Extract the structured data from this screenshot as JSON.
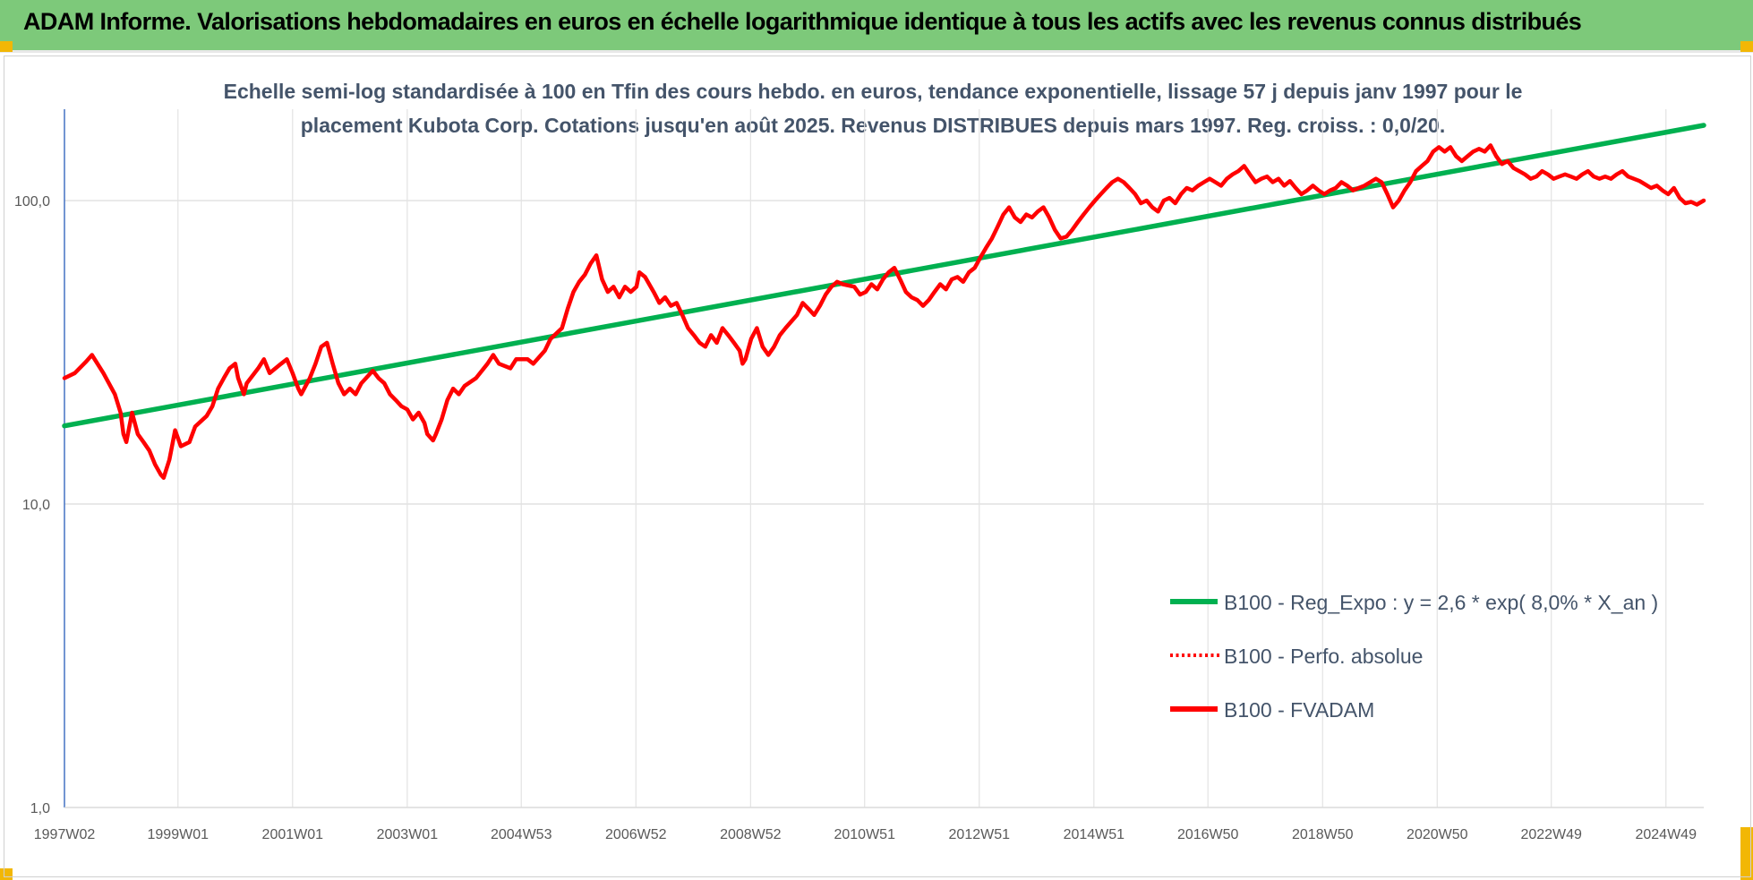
{
  "header": {
    "title": "ADAM Informe. Valorisations hebdomadaires en euros en échelle logarithmique identique à tous les actifs avec les revenus connus distribués",
    "background": "#7dc97a"
  },
  "chart_data": {
    "type": "line",
    "title_lines": [
      "Echelle semi-log standardisée à 100 en Tfin des cours hebdo. en euros, tendance exponentielle, lissage 57 j depuis janv 1997 pour le",
      "placement Kubota Corp. Cotations jusqu'en août 2025. Revenus DISTRIBUES depuis mars 1997. Reg. croiss. : 0,0/20."
    ],
    "y_scale": "log",
    "ylim": [
      1,
      200
    ],
    "y_ticks": [
      {
        "value": 1,
        "label": "1,0"
      },
      {
        "value": 10,
        "label": "10,0"
      },
      {
        "value": 100,
        "label": "100,0"
      }
    ],
    "xlim": [
      1997.02,
      2025.62
    ],
    "x_ticks": [
      {
        "value": 1997.02,
        "label": "1997W02"
      },
      {
        "value": 1999.0,
        "label": "1999W01"
      },
      {
        "value": 2001.0,
        "label": "2001W01"
      },
      {
        "value": 2003.0,
        "label": "2003W01"
      },
      {
        "value": 2004.99,
        "label": "2004W53"
      },
      {
        "value": 2006.99,
        "label": "2006W52"
      },
      {
        "value": 2008.99,
        "label": "2008W52"
      },
      {
        "value": 2010.98,
        "label": "2010W51"
      },
      {
        "value": 2012.98,
        "label": "2012W51"
      },
      {
        "value": 2014.98,
        "label": "2014W51"
      },
      {
        "value": 2016.97,
        "label": "2016W50"
      },
      {
        "value": 2018.97,
        "label": "2018W50"
      },
      {
        "value": 2020.97,
        "label": "2020W50"
      },
      {
        "value": 2022.96,
        "label": "2022W49"
      },
      {
        "value": 2024.96,
        "label": "2024W49"
      }
    ],
    "grid": true,
    "legend_position": "lower-right",
    "series": [
      {
        "name": "B100 - Reg_Expo : y = 2,6 * exp( 8,0% *  X_an )",
        "color": "#00b050",
        "style": "solid",
        "points": [
          [
            1997.02,
            18.1
          ],
          [
            2025.62,
            177.0
          ]
        ]
      },
      {
        "name": "B100 - Perfo. absolue",
        "color": "#ff0000",
        "style": "dotted",
        "points": []
      },
      {
        "name": "B100 - FVADAM",
        "color": "#ff0000",
        "style": "solid",
        "points": [
          [
            1997.02,
            26.0
          ],
          [
            1997.2,
            27.0
          ],
          [
            1997.4,
            29.5
          ],
          [
            1997.5,
            31.0
          ],
          [
            1997.7,
            27.0
          ],
          [
            1997.9,
            23.0
          ],
          [
            1998.0,
            20.0
          ],
          [
            1998.05,
            17.0
          ],
          [
            1998.1,
            16.0
          ],
          [
            1998.2,
            20.0
          ],
          [
            1998.3,
            17.0
          ],
          [
            1998.4,
            16.0
          ],
          [
            1998.5,
            15.0
          ],
          [
            1998.6,
            13.5
          ],
          [
            1998.7,
            12.5
          ],
          [
            1998.75,
            12.2
          ],
          [
            1998.85,
            14.0
          ],
          [
            1998.95,
            17.5
          ],
          [
            1999.05,
            15.5
          ],
          [
            1999.2,
            16.0
          ],
          [
            1999.3,
            18.0
          ],
          [
            1999.5,
            19.5
          ],
          [
            1999.6,
            21.0
          ],
          [
            1999.7,
            24.0
          ],
          [
            1999.8,
            26.0
          ],
          [
            1999.9,
            28.0
          ],
          [
            2000.0,
            29.0
          ],
          [
            2000.05,
            26.0
          ],
          [
            2000.15,
            23.0
          ],
          [
            2000.2,
            25.0
          ],
          [
            2000.4,
            28.0
          ],
          [
            2000.5,
            30.0
          ],
          [
            2000.6,
            27.0
          ],
          [
            2000.8,
            29.0
          ],
          [
            2000.9,
            30.0
          ],
          [
            2001.0,
            27.0
          ],
          [
            2001.1,
            24.0
          ],
          [
            2001.15,
            23.0
          ],
          [
            2001.3,
            26.0
          ],
          [
            2001.4,
            29.0
          ],
          [
            2001.5,
            33.0
          ],
          [
            2001.6,
            34.0
          ],
          [
            2001.7,
            29.0
          ],
          [
            2001.8,
            25.0
          ],
          [
            2001.9,
            23.0
          ],
          [
            2002.0,
            24.0
          ],
          [
            2002.1,
            23.0
          ],
          [
            2002.2,
            25.0
          ],
          [
            2002.4,
            27.5
          ],
          [
            2002.5,
            26.0
          ],
          [
            2002.6,
            25.0
          ],
          [
            2002.7,
            23.0
          ],
          [
            2002.8,
            22.0
          ],
          [
            2002.9,
            21.0
          ],
          [
            2003.0,
            20.5
          ],
          [
            2003.1,
            19.0
          ],
          [
            2003.2,
            20.0
          ],
          [
            2003.3,
            18.5
          ],
          [
            2003.35,
            17.0
          ],
          [
            2003.45,
            16.2
          ],
          [
            2003.5,
            17.0
          ],
          [
            2003.6,
            19.0
          ],
          [
            2003.7,
            22.0
          ],
          [
            2003.8,
            24.0
          ],
          [
            2003.9,
            23.0
          ],
          [
            2004.0,
            24.5
          ],
          [
            2004.2,
            26.0
          ],
          [
            2004.4,
            29.0
          ],
          [
            2004.5,
            31.0
          ],
          [
            2004.6,
            29.0
          ],
          [
            2004.8,
            28.0
          ],
          [
            2004.9,
            30.0
          ],
          [
            2005.1,
            30.0
          ],
          [
            2005.2,
            29.0
          ],
          [
            2005.4,
            32.0
          ],
          [
            2005.5,
            35.0
          ],
          [
            2005.7,
            38.0
          ],
          [
            2005.8,
            44.0
          ],
          [
            2005.9,
            50.0
          ],
          [
            2006.0,
            54.0
          ],
          [
            2006.1,
            57.0
          ],
          [
            2006.2,
            62.0
          ],
          [
            2006.3,
            66.0
          ],
          [
            2006.4,
            55.0
          ],
          [
            2006.5,
            50.0
          ],
          [
            2006.6,
            52.0
          ],
          [
            2006.7,
            48.0
          ],
          [
            2006.8,
            52.0
          ],
          [
            2006.9,
            50.0
          ],
          [
            2007.0,
            52.0
          ],
          [
            2007.05,
            58.0
          ],
          [
            2007.15,
            56.0
          ],
          [
            2007.3,
            50.0
          ],
          [
            2007.4,
            46.0
          ],
          [
            2007.5,
            48.0
          ],
          [
            2007.6,
            45.0
          ],
          [
            2007.7,
            46.0
          ],
          [
            2007.8,
            42.0
          ],
          [
            2007.9,
            38.0
          ],
          [
            2008.0,
            36.0
          ],
          [
            2008.1,
            34.0
          ],
          [
            2008.2,
            33.0
          ],
          [
            2008.3,
            36.0
          ],
          [
            2008.4,
            34.0
          ],
          [
            2008.5,
            38.0
          ],
          [
            2008.6,
            36.0
          ],
          [
            2008.7,
            34.0
          ],
          [
            2008.8,
            32.0
          ],
          [
            2008.85,
            29.0
          ],
          [
            2008.9,
            30.0
          ],
          [
            2009.0,
            35.0
          ],
          [
            2009.1,
            38.0
          ],
          [
            2009.2,
            33.0
          ],
          [
            2009.3,
            31.0
          ],
          [
            2009.4,
            33.0
          ],
          [
            2009.5,
            36.0
          ],
          [
            2009.6,
            38.0
          ],
          [
            2009.8,
            42.0
          ],
          [
            2009.9,
            46.0
          ],
          [
            2010.0,
            44.0
          ],
          [
            2010.1,
            42.0
          ],
          [
            2010.2,
            45.0
          ],
          [
            2010.3,
            49.0
          ],
          [
            2010.4,
            52.0
          ],
          [
            2010.5,
            54.0
          ],
          [
            2010.6,
            53.0
          ],
          [
            2010.8,
            52.0
          ],
          [
            2010.9,
            49.0
          ],
          [
            2011.0,
            50.0
          ],
          [
            2011.1,
            53.0
          ],
          [
            2011.2,
            51.0
          ],
          [
            2011.3,
            55.0
          ],
          [
            2011.4,
            58.0
          ],
          [
            2011.5,
            60.0
          ],
          [
            2011.6,
            55.0
          ],
          [
            2011.7,
            50.0
          ],
          [
            2011.8,
            48.0
          ],
          [
            2011.9,
            47.0
          ],
          [
            2012.0,
            45.0
          ],
          [
            2012.1,
            47.0
          ],
          [
            2012.2,
            50.0
          ],
          [
            2012.3,
            53.0
          ],
          [
            2012.4,
            51.0
          ],
          [
            2012.5,
            55.0
          ],
          [
            2012.6,
            56.0
          ],
          [
            2012.7,
            54.0
          ],
          [
            2012.8,
            58.0
          ],
          [
            2012.9,
            60.0
          ],
          [
            2013.0,
            65.0
          ],
          [
            2013.1,
            70.0
          ],
          [
            2013.2,
            75.0
          ],
          [
            2013.3,
            82.0
          ],
          [
            2013.4,
            90.0
          ],
          [
            2013.5,
            95.0
          ],
          [
            2013.6,
            88.0
          ],
          [
            2013.7,
            85.0
          ],
          [
            2013.8,
            90.0
          ],
          [
            2013.9,
            88.0
          ],
          [
            2014.0,
            92.0
          ],
          [
            2014.1,
            95.0
          ],
          [
            2014.2,
            88.0
          ],
          [
            2014.3,
            80.0
          ],
          [
            2014.4,
            75.0
          ],
          [
            2014.5,
            76.0
          ],
          [
            2014.6,
            80.0
          ],
          [
            2014.7,
            85.0
          ],
          [
            2014.8,
            90.0
          ],
          [
            2014.9,
            95.0
          ],
          [
            2015.0,
            100.0
          ],
          [
            2015.1,
            105.0
          ],
          [
            2015.2,
            110.0
          ],
          [
            2015.3,
            115.0
          ],
          [
            2015.4,
            118.0
          ],
          [
            2015.5,
            115.0
          ],
          [
            2015.6,
            110.0
          ],
          [
            2015.7,
            105.0
          ],
          [
            2015.8,
            98.0
          ],
          [
            2015.9,
            100.0
          ],
          [
            2016.0,
            95.0
          ],
          [
            2016.1,
            92.0
          ],
          [
            2016.2,
            100.0
          ],
          [
            2016.3,
            102.0
          ],
          [
            2016.4,
            98.0
          ],
          [
            2016.5,
            105.0
          ],
          [
            2016.6,
            110.0
          ],
          [
            2016.7,
            108.0
          ],
          [
            2016.8,
            112.0
          ],
          [
            2016.9,
            115.0
          ],
          [
            2017.0,
            118.0
          ],
          [
            2017.1,
            115.0
          ],
          [
            2017.2,
            112.0
          ],
          [
            2017.3,
            118.0
          ],
          [
            2017.4,
            122.0
          ],
          [
            2017.5,
            125.0
          ],
          [
            2017.6,
            130.0
          ],
          [
            2017.7,
            122.0
          ],
          [
            2017.8,
            115.0
          ],
          [
            2017.9,
            118.0
          ],
          [
            2018.0,
            120.0
          ],
          [
            2018.1,
            115.0
          ],
          [
            2018.2,
            118.0
          ],
          [
            2018.3,
            112.0
          ],
          [
            2018.4,
            116.0
          ],
          [
            2018.5,
            110.0
          ],
          [
            2018.6,
            105.0
          ],
          [
            2018.7,
            108.0
          ],
          [
            2018.8,
            112.0
          ],
          [
            2018.9,
            108.0
          ],
          [
            2019.0,
            105.0
          ],
          [
            2019.1,
            108.0
          ],
          [
            2019.2,
            110.0
          ],
          [
            2019.3,
            115.0
          ],
          [
            2019.4,
            112.0
          ],
          [
            2019.5,
            108.0
          ],
          [
            2019.6,
            110.0
          ],
          [
            2019.7,
            112.0
          ],
          [
            2019.8,
            115.0
          ],
          [
            2019.9,
            118.0
          ],
          [
            2020.0,
            115.0
          ],
          [
            2020.1,
            105.0
          ],
          [
            2020.2,
            95.0
          ],
          [
            2020.3,
            100.0
          ],
          [
            2020.4,
            108.0
          ],
          [
            2020.5,
            115.0
          ],
          [
            2020.6,
            125.0
          ],
          [
            2020.7,
            130.0
          ],
          [
            2020.8,
            135.0
          ],
          [
            2020.9,
            145.0
          ],
          [
            2021.0,
            150.0
          ],
          [
            2021.1,
            145.0
          ],
          [
            2021.2,
            150.0
          ],
          [
            2021.3,
            140.0
          ],
          [
            2021.4,
            135.0
          ],
          [
            2021.5,
            140.0
          ],
          [
            2021.6,
            145.0
          ],
          [
            2021.7,
            148.0
          ],
          [
            2021.8,
            145.0
          ],
          [
            2021.9,
            152.0
          ],
          [
            2022.0,
            140.0
          ],
          [
            2022.1,
            132.0
          ],
          [
            2022.2,
            135.0
          ],
          [
            2022.3,
            128.0
          ],
          [
            2022.4,
            125.0
          ],
          [
            2022.5,
            122.0
          ],
          [
            2022.6,
            118.0
          ],
          [
            2022.7,
            120.0
          ],
          [
            2022.8,
            125.0
          ],
          [
            2022.9,
            122.0
          ],
          [
            2023.0,
            118.0
          ],
          [
            2023.1,
            120.0
          ],
          [
            2023.2,
            122.0
          ],
          [
            2023.3,
            120.0
          ],
          [
            2023.4,
            118.0
          ],
          [
            2023.5,
            122.0
          ],
          [
            2023.6,
            125.0
          ],
          [
            2023.7,
            120.0
          ],
          [
            2023.8,
            118.0
          ],
          [
            2023.9,
            120.0
          ],
          [
            2024.0,
            118.0
          ],
          [
            2024.1,
            122.0
          ],
          [
            2024.2,
            125.0
          ],
          [
            2024.3,
            120.0
          ],
          [
            2024.4,
            118.0
          ],
          [
            2024.5,
            116.0
          ],
          [
            2024.6,
            113.0
          ],
          [
            2024.7,
            110.0
          ],
          [
            2024.8,
            112.0
          ],
          [
            2024.9,
            108.0
          ],
          [
            2025.0,
            105.0
          ],
          [
            2025.1,
            110.0
          ],
          [
            2025.2,
            102.0
          ],
          [
            2025.3,
            98.0
          ],
          [
            2025.4,
            99.0
          ],
          [
            2025.5,
            97.0
          ],
          [
            2025.62,
            100.0
          ]
        ]
      }
    ]
  }
}
